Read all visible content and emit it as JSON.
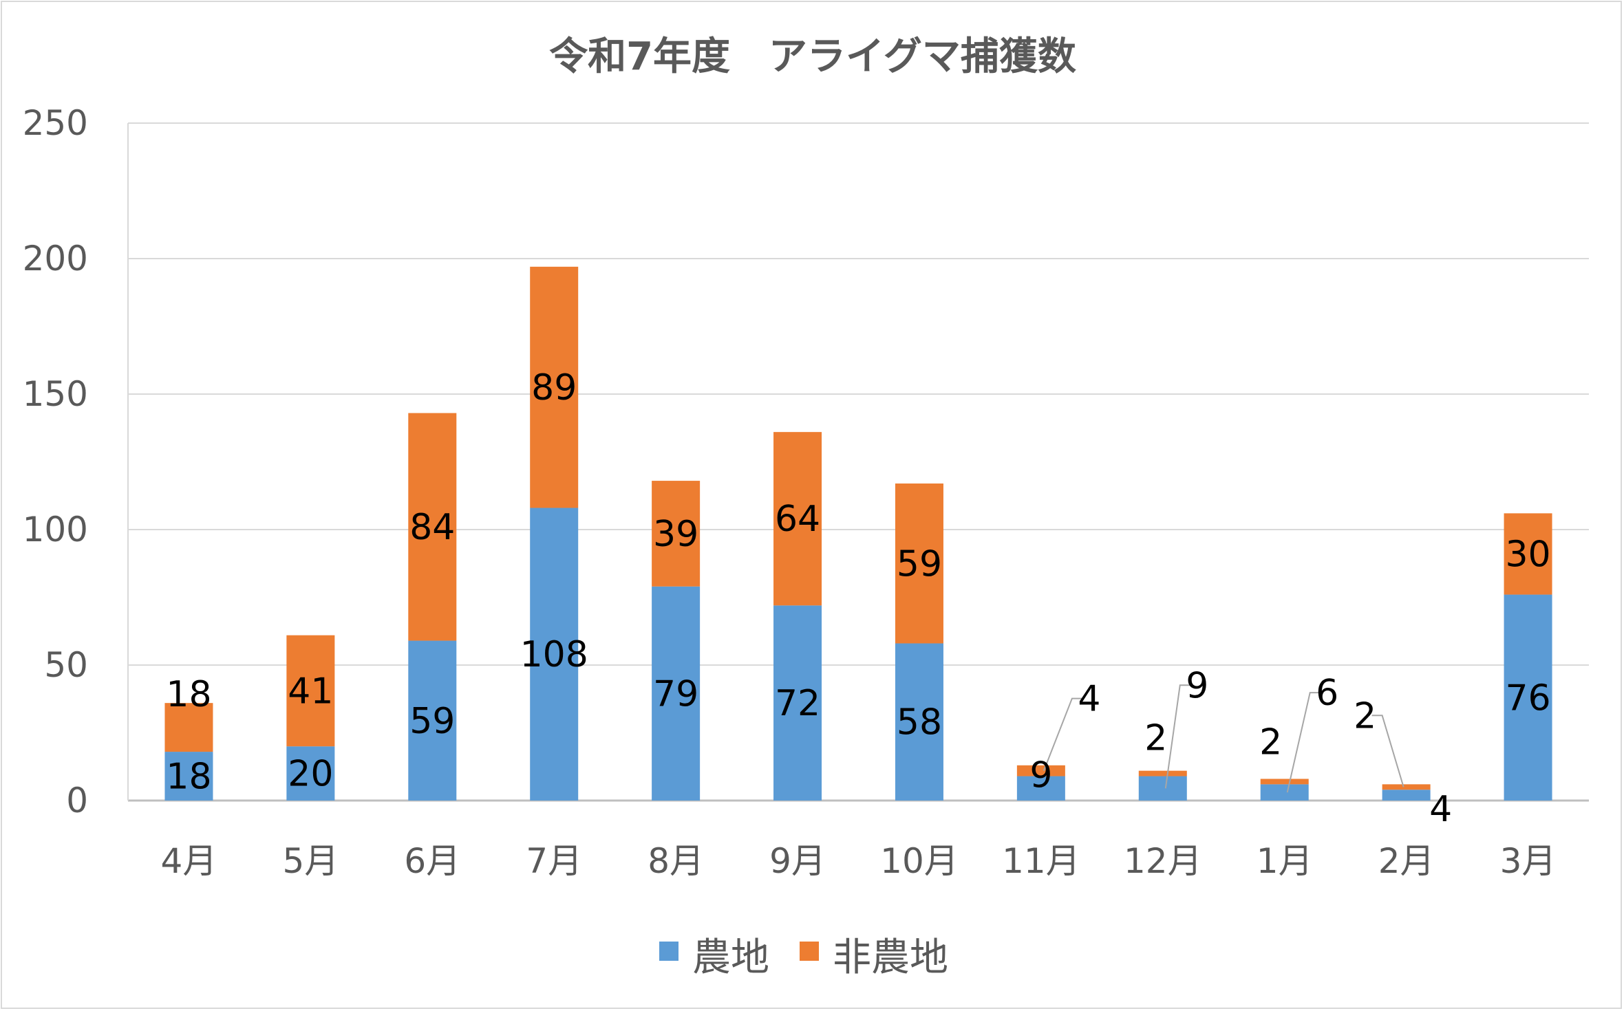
{
  "chart_data": {
    "type": "bar",
    "stacked": true,
    "title": "令和7年度　アライグマ捕獲数",
    "categories": [
      "4月",
      "5月",
      "6月",
      "7月",
      "8月",
      "9月",
      "10月",
      "11月",
      "12月",
      "1月",
      "2月",
      "3月"
    ],
    "series": [
      {
        "name": "農地",
        "color": "#5b9bd5",
        "values": [
          18,
          20,
          59,
          108,
          79,
          72,
          58,
          9,
          9,
          6,
          4,
          76
        ]
      },
      {
        "name": "非農地",
        "color": "#ed7d31",
        "values": [
          18,
          41,
          84,
          89,
          39,
          64,
          59,
          4,
          2,
          2,
          2,
          30
        ]
      }
    ],
    "ylim": [
      0,
      250
    ],
    "yticks": [
      "0",
      "50",
      "100",
      "150",
      "200",
      "250"
    ],
    "grid": true,
    "legend_position": "bottom",
    "data_labels": true
  }
}
